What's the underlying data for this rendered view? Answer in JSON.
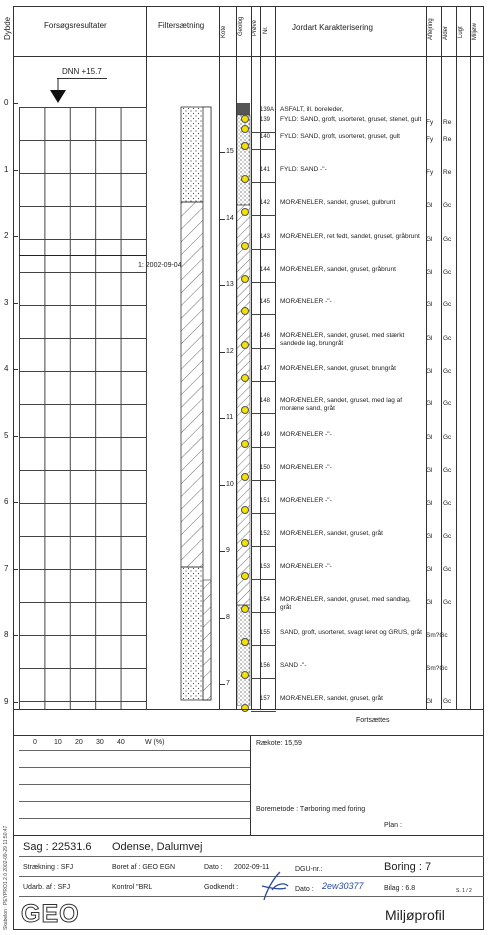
{
  "header": {
    "dybde": "Dybde",
    "forsoegs": "Forsøgsresultater",
    "filter": "Filtersætning",
    "kote": "Kote",
    "geolog": "Geolog",
    "proeve": "Prøve",
    "nr": "Nr.",
    "jordart": "Jordart  Karakterisering",
    "aflejring": "Aflejring",
    "alder": "Alder",
    "lugt": "Lugt",
    "miljoe": "Miljøw"
  },
  "dnn_label": "DNN +15.7",
  "water_date": "1: 2002-09-04",
  "depth_ticks": [
    "0",
    "1",
    "2",
    "3",
    "4",
    "5",
    "6",
    "7",
    "8",
    "9"
  ],
  "kote_ticks": [
    "15",
    "14",
    "13",
    "12",
    "11",
    "10",
    "9",
    "8",
    "7"
  ],
  "samples": [
    {
      "nr": "139A",
      "desc": "ASFALT, ill. boreleder,",
      "a": "",
      "b": ""
    },
    {
      "nr": "139",
      "desc": "FYLD: SAND, groft, usorteret, gruset, stenet, gult",
      "a": "Fy",
      "b": "Re"
    },
    {
      "nr": "140",
      "desc": "FYLD: SAND, groft, usorteret, gruset, gult",
      "a": "Fy",
      "b": "Re"
    },
    {
      "nr": "141",
      "desc": "FYLD: SAND  -\"-",
      "a": "Fy",
      "b": "Re"
    },
    {
      "nr": "142",
      "desc": "MORÆNELER, sandet, gruset, gulbrunt",
      "a": "Gl",
      "b": "Gc"
    },
    {
      "nr": "143",
      "desc": "MORÆNELER, ret fedt, sandet, gruset, gråbrunt",
      "a": "Gl",
      "b": "Gc"
    },
    {
      "nr": "144",
      "desc": "MORÆNELER, sandet, gruset, gråbrunt",
      "a": "Gl",
      "b": "Gc"
    },
    {
      "nr": "145",
      "desc": "MORÆNELER  -\"-",
      "a": "Gl",
      "b": "Gc"
    },
    {
      "nr": "146",
      "desc": "MORÆNELER, sandet, gruset, med stærkt sandede lag, brungråt",
      "a": "Gl",
      "b": "Gc"
    },
    {
      "nr": "147",
      "desc": "MORÆNELER, sandet, gruset, brungråt",
      "a": "Gl",
      "b": "Gc"
    },
    {
      "nr": "148",
      "desc": "MORÆNELER, sandet, gruset, med lag af moræne sand, gråt",
      "a": "Gl",
      "b": "Gc"
    },
    {
      "nr": "149",
      "desc": "MORÆNELER  -\"-",
      "a": "Gl",
      "b": "Gc"
    },
    {
      "nr": "150",
      "desc": "MORÆNELER  -\"-",
      "a": "Gl",
      "b": "Gc"
    },
    {
      "nr": "151",
      "desc": "MORÆNELER  -\"-",
      "a": "Gl",
      "b": "Gc"
    },
    {
      "nr": "152",
      "desc": "MORÆNELER, sandet, gruset, gråt",
      "a": "Gl",
      "b": "Gc"
    },
    {
      "nr": "153",
      "desc": "MORÆNELER  -\"-",
      "a": "Gl",
      "b": "Gc"
    },
    {
      "nr": "154",
      "desc": "MORÆNELER, sandet, gruset, med sandlag, gråt",
      "a": "Gl",
      "b": "Gc"
    },
    {
      "nr": "155",
      "desc": "SAND, groft, usorteret, svagt leret og GRUS, gråt",
      "a": "Sm?Gc",
      "b": ""
    },
    {
      "nr": "156",
      "desc": "SAND  -\"-",
      "a": "Sm?Gc",
      "b": ""
    },
    {
      "nr": "157",
      "desc": "MORÆNELER, sandet, gruset, gråt",
      "a": "Gl",
      "b": "Gc"
    }
  ],
  "fortsaettes": "Fortsættes",
  "w_axis": {
    "ticks": [
      "0",
      "10",
      "20",
      "30",
      "40"
    ],
    "label": "W (%)"
  },
  "raekote": "Rækote: 15,59",
  "boremetode": "Boremetode : Tørboring med foring",
  "plan": "Plan :",
  "sag": "Sag : 22531.6",
  "location": "Odense, Dalumvej",
  "straekning": "Strækning : SFJ",
  "boret_af": "Boret af : GEO EGN",
  "dato_label": "Dato :",
  "dato": "2002-09-11",
  "dgu": "DGU-nr.:",
  "boring": "Boring : 7",
  "udarb": "Udarb. af : SFJ",
  "kontrol": "Kontrol \"BRL",
  "godkendt": "Godkendt :",
  "dato2": "Dato :",
  "dato2_val": "2ew30377",
  "bilag": "Bilag : 6.8",
  "page": "S. 1 / 2",
  "logo": "GEO",
  "title": "Miljøprofil",
  "side_text": "Skabelon : PEYPRO1.2.0  2002-09-29 11:50:47"
}
